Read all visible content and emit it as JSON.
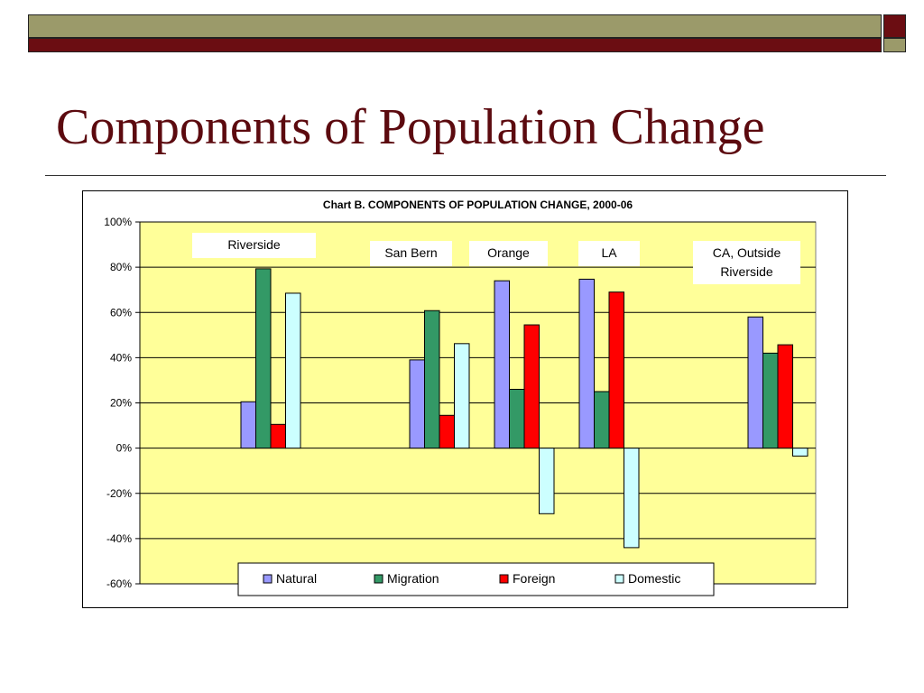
{
  "slide": {
    "title": "Components of Population Change"
  },
  "colors": {
    "olive": "#9b9a6a",
    "maroon": "#6b0d12",
    "plot_bg": "#ffff99"
  },
  "chart_data": {
    "type": "bar",
    "title": "Chart B. COMPONENTS OF POPULATION CHANGE, 2000-06",
    "xlabel": "",
    "ylabel": "",
    "ylim": [
      -60,
      100
    ],
    "y_ticks": [
      "100%",
      "80%",
      "60%",
      "40%",
      "20%",
      "0%",
      "-20%",
      "-40%",
      "-60%"
    ],
    "grid": true,
    "legend_position": "bottom",
    "categories": [
      "Riverside",
      "San Bern",
      "Orange",
      "LA",
      "CA, Outside Riverside"
    ],
    "series": [
      {
        "name": "Natural",
        "color": "#9999ff",
        "values": [
          20.5,
          39,
          74,
          74.7,
          58
        ]
      },
      {
        "name": "Migration",
        "color": "#339966",
        "values": [
          79.3,
          60.8,
          26,
          25,
          42
        ]
      },
      {
        "name": "Foreign",
        "color": "#ff0000",
        "values": [
          10.5,
          14.5,
          54.5,
          69,
          45.7
        ]
      },
      {
        "name": "Domestic",
        "color": "#ccffff",
        "values": [
          68.5,
          46.2,
          -29,
          -44,
          -3.5
        ]
      }
    ],
    "annotations": [
      {
        "text": "Riverside",
        "lines": [
          "Riverside"
        ]
      },
      {
        "text": "San Bern",
        "lines": [
          "San Bern"
        ]
      },
      {
        "text": "Orange",
        "lines": [
          "Orange"
        ]
      },
      {
        "text": "LA",
        "lines": [
          "LA"
        ]
      },
      {
        "text": "CA, Outside Riverside",
        "lines": [
          "CA, Outside",
          "Riverside"
        ]
      }
    ]
  }
}
